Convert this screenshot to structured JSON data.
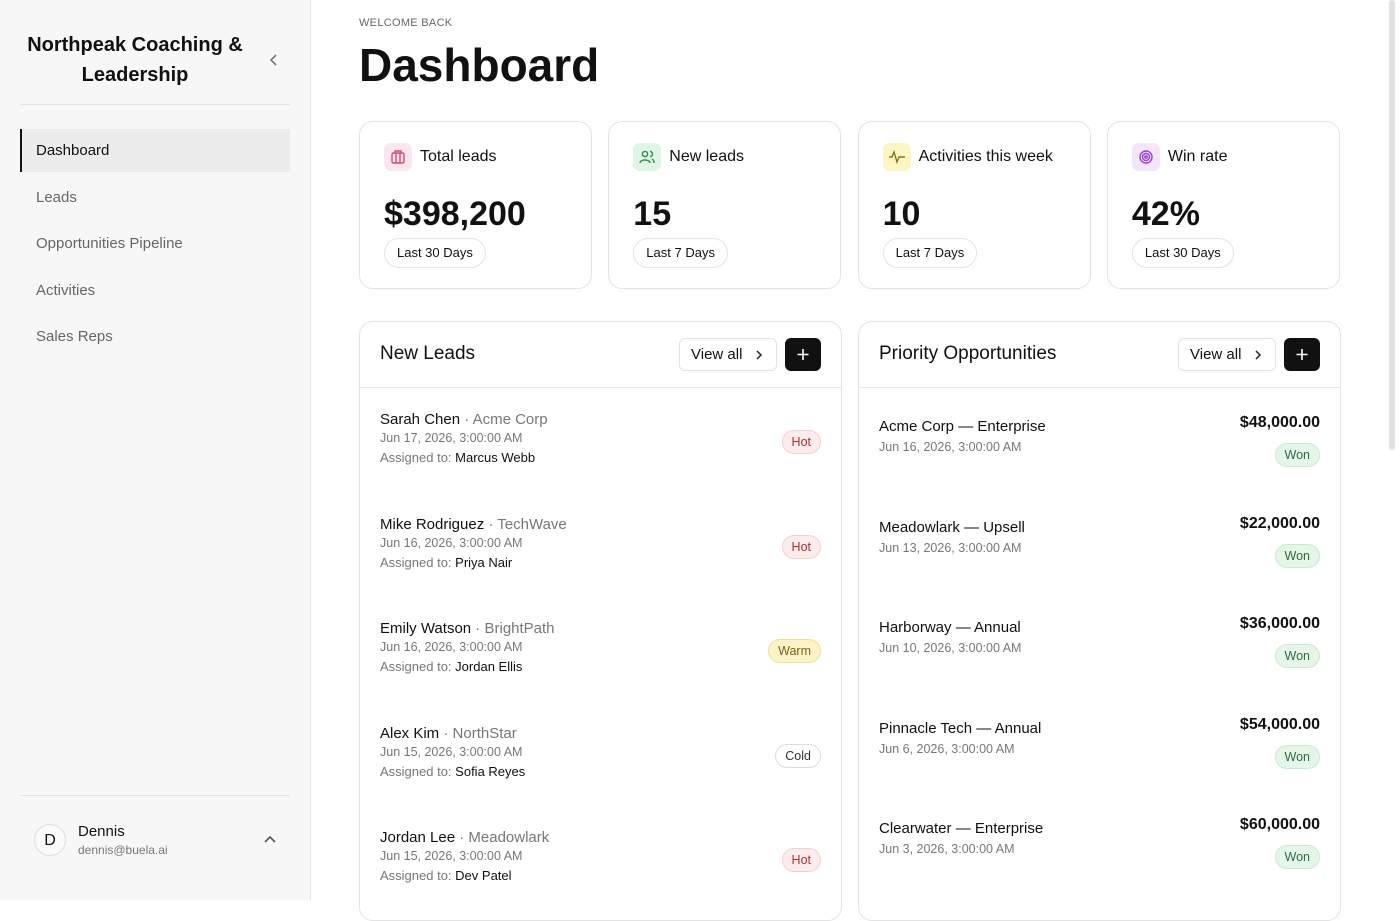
{
  "sidebar": {
    "brand": "Northpeak Coaching & Leadership",
    "nav": [
      "Dashboard",
      "Leads",
      "Opportunities Pipeline",
      "Activities",
      "Sales Reps"
    ],
    "user": {
      "initial": "D",
      "name": "Dennis",
      "email": "dennis@buela.ai"
    }
  },
  "header": {
    "eyebrow": "WELCOME BACK",
    "title": "Dashboard"
  },
  "stats": [
    {
      "label": "Total leads",
      "value": "$398,200",
      "period": "Last 30 Days"
    },
    {
      "label": "New leads",
      "value": "15",
      "period": "Last 7 Days"
    },
    {
      "label": "Activities this week",
      "value": "10",
      "period": "Last 7 Days"
    },
    {
      "label": "Win rate",
      "value": "42%",
      "period": "Last 30 Days"
    }
  ],
  "new_leads": {
    "title": "New Leads",
    "view_all": "View all",
    "assigned_label": "Assigned to:",
    "items": [
      {
        "name": "Sarah Chen",
        "company": "Acme Corp",
        "date": "Jun 17, 2026, 3:00:00 AM",
        "assignee": "Marcus Webb",
        "status": "Hot"
      },
      {
        "name": "Mike Rodriguez",
        "company": "TechWave",
        "date": "Jun 16, 2026, 3:00:00 AM",
        "assignee": "Priya Nair",
        "status": "Hot"
      },
      {
        "name": "Emily Watson",
        "company": "BrightPath",
        "date": "Jun 16, 2026, 3:00:00 AM",
        "assignee": "Jordan Ellis",
        "status": "Warm"
      },
      {
        "name": "Alex Kim",
        "company": "NorthStar",
        "date": "Jun 15, 2026, 3:00:00 AM",
        "assignee": "Sofia Reyes",
        "status": "Cold"
      },
      {
        "name": "Jordan Lee",
        "company": "Meadowlark",
        "date": "Jun 15, 2026, 3:00:00 AM",
        "assignee": "Dev Patel",
        "status": "Hot"
      }
    ]
  },
  "priority_opportunities": {
    "title": "Priority Opportunities",
    "view_all": "View all",
    "items": [
      {
        "name": "Acme Corp — Enterprise",
        "date": "Jun 16, 2026, 3:00:00 AM",
        "amount": "$48,000.00",
        "status": "Won"
      },
      {
        "name": "Meadowlark — Upsell",
        "date": "Jun 13, 2026, 3:00:00 AM",
        "amount": "$22,000.00",
        "status": "Won"
      },
      {
        "name": "Harborway — Annual",
        "date": "Jun 10, 2026, 3:00:00 AM",
        "amount": "$36,000.00",
        "status": "Won"
      },
      {
        "name": "Pinnacle Tech — Annual",
        "date": "Jun 6, 2026, 3:00:00 AM",
        "amount": "$54,000.00",
        "status": "Won"
      },
      {
        "name": "Clearwater — Enterprise",
        "date": "Jun 3, 2026, 3:00:00 AM",
        "amount": "$60,000.00",
        "status": "Won"
      }
    ]
  }
}
